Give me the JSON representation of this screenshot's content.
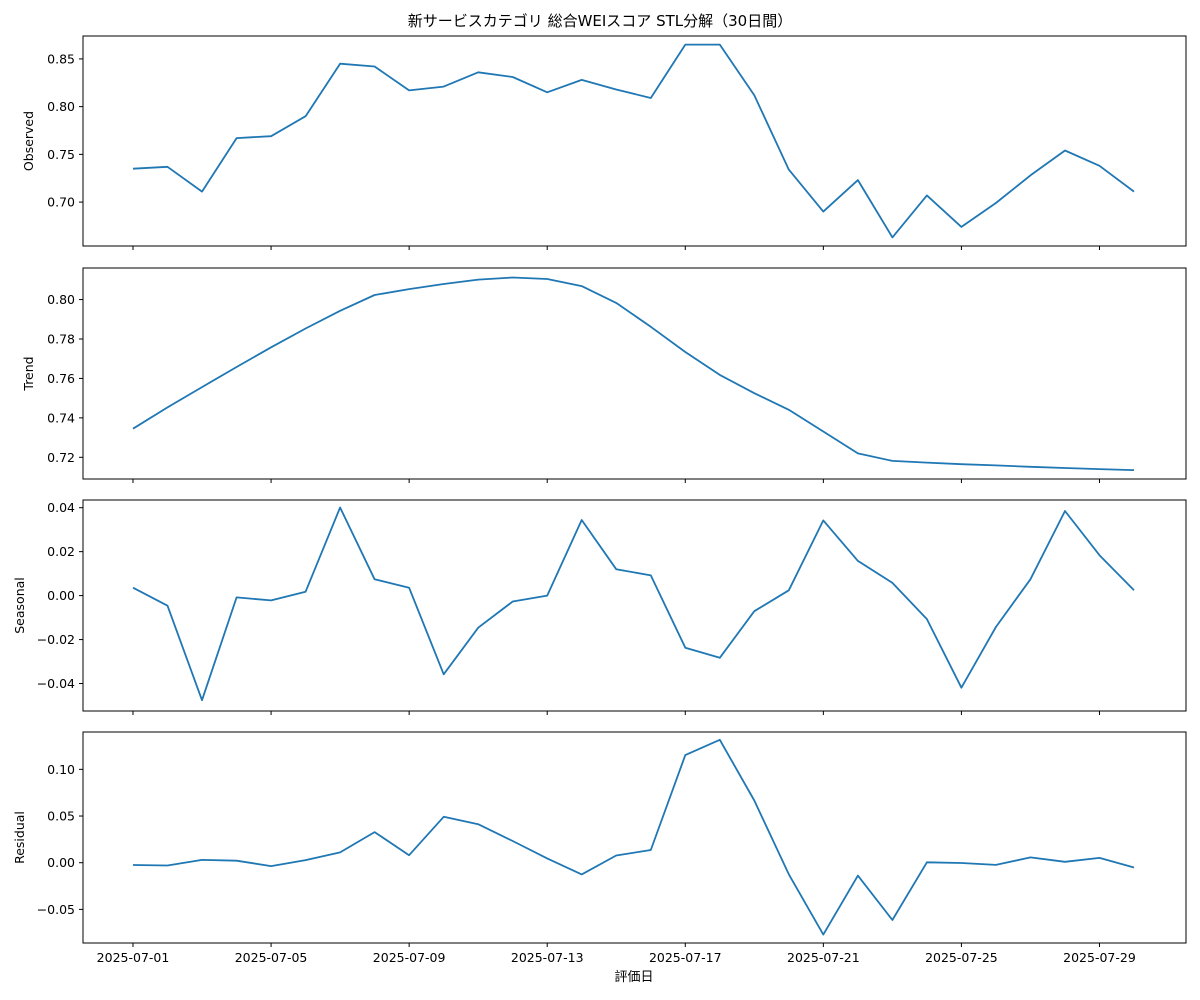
{
  "chart_data": {
    "type": "line",
    "title": "新サービスカテゴリ 総合WEIスコア STL分解（30日間）",
    "xlabel": "評価日",
    "x": [
      "2025-07-01",
      "2025-07-02",
      "2025-07-03",
      "2025-07-04",
      "2025-07-05",
      "2025-07-06",
      "2025-07-07",
      "2025-07-08",
      "2025-07-09",
      "2025-07-10",
      "2025-07-11",
      "2025-07-12",
      "2025-07-13",
      "2025-07-14",
      "2025-07-15",
      "2025-07-16",
      "2025-07-17",
      "2025-07-18",
      "2025-07-19",
      "2025-07-20",
      "2025-07-21",
      "2025-07-22",
      "2025-07-23",
      "2025-07-24",
      "2025-07-25",
      "2025-07-26",
      "2025-07-27",
      "2025-07-28",
      "2025-07-29",
      "2025-07-30"
    ],
    "xticks": [
      "2025-07-01",
      "2025-07-05",
      "2025-07-09",
      "2025-07-13",
      "2025-07-17",
      "2025-07-21",
      "2025-07-25",
      "2025-07-29"
    ],
    "line_color": "#1f77b4",
    "grid": false,
    "panels": [
      {
        "ylabel": "Observed",
        "ylim": [
          0.654,
          0.874
        ],
        "yticks": [
          0.7,
          0.75,
          0.8,
          0.85
        ],
        "ytick_labels": [
          "0.70",
          "0.75",
          "0.80",
          "0.85"
        ],
        "values": [
          0.735,
          0.737,
          0.711,
          0.767,
          0.769,
          0.79,
          0.845,
          0.842,
          0.817,
          0.821,
          0.836,
          0.831,
          0.815,
          0.828,
          0.818,
          0.809,
          0.865,
          0.865,
          0.812,
          0.734,
          0.69,
          0.723,
          0.663,
          0.707,
          0.674,
          0.699,
          0.728,
          0.754,
          0.738,
          0.711
        ]
      },
      {
        "ylabel": "Trend",
        "ylim": [
          0.709,
          0.816
        ],
        "yticks": [
          0.72,
          0.74,
          0.76,
          0.78,
          0.8
        ],
        "ytick_labels": [
          "0.72",
          "0.74",
          "0.76",
          "0.78",
          "0.80"
        ],
        "values": [
          0.7345,
          0.7453,
          0.7556,
          0.7658,
          0.7758,
          0.7853,
          0.7943,
          0.8023,
          0.8053,
          0.8079,
          0.8101,
          0.8112,
          0.8104,
          0.8068,
          0.7983,
          0.7862,
          0.7734,
          0.7618,
          0.7525,
          0.7441,
          0.7331,
          0.722,
          0.7182,
          0.7173,
          0.7165,
          0.7159,
          0.7152,
          0.7146,
          0.714,
          0.7135
        ]
      },
      {
        "ylabel": "Seasonal",
        "ylim": [
          -0.0525,
          0.0435
        ],
        "yticks": [
          -0.04,
          -0.02,
          0.0,
          0.02,
          0.04
        ],
        "ytick_labels": [
          "−0.04",
          "−0.02",
          "0.00",
          "0.02",
          "0.04"
        ],
        "values": [
          0.0036,
          -0.0046,
          -0.0476,
          -0.0008,
          -0.0022,
          0.0018,
          0.0401,
          0.0074,
          0.0036,
          -0.0358,
          -0.0146,
          -0.0027,
          0.0,
          0.0344,
          0.012,
          0.0092,
          -0.0237,
          -0.0283,
          -0.0071,
          0.0024,
          0.0342,
          0.0158,
          0.0058,
          -0.0107,
          -0.0419,
          -0.0143,
          0.0074,
          0.0385,
          0.0184,
          0.0024
        ]
      },
      {
        "ylabel": "Residual",
        "ylim": [
          -0.086,
          0.14
        ],
        "yticks": [
          -0.05,
          0.0,
          0.05,
          0.1
        ],
        "ytick_labels": [
          "−0.05",
          "0.00",
          "0.05",
          "0.10"
        ],
        "values": [
          -0.0025,
          -0.003,
          0.003,
          0.0022,
          -0.0036,
          0.0028,
          0.011,
          0.0328,
          0.008,
          0.0492,
          0.0412,
          0.0232,
          0.0046,
          -0.0125,
          0.0077,
          0.0136,
          0.1153,
          0.1316,
          0.0666,
          -0.0124,
          -0.077,
          -0.0138,
          -0.0614,
          0.0004,
          -0.0003,
          -0.0023,
          0.0057,
          0.001,
          0.0051,
          -0.0051
        ]
      }
    ]
  }
}
